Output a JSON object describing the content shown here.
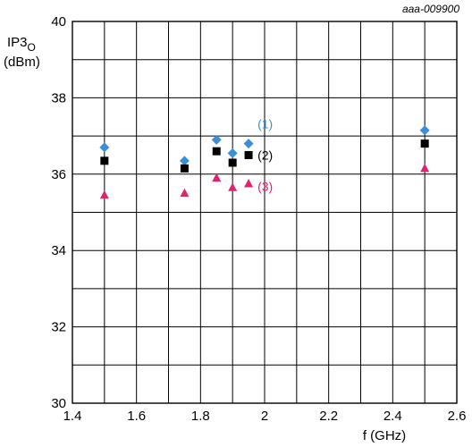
{
  "figure_id": "aaa-009900",
  "chart_data": {
    "type": "scatter",
    "y_label_main": "IP3",
    "y_label_sub": "O",
    "y_label_unit": "(dBm)",
    "xlabel": "f (GHz)",
    "xlim": [
      1.4,
      2.6
    ],
    "ylim": [
      30,
      40
    ],
    "x_ticks": [
      "1.4",
      "1.6",
      "1.8",
      "2",
      "2.2",
      "2.4",
      "2.6"
    ],
    "y_ticks": [
      "30",
      "32",
      "34",
      "36",
      "38",
      "40"
    ],
    "x_grid_step": 0.1,
    "y_grid_step": 1,
    "grid": true,
    "series": [
      {
        "label": "(1)",
        "marker": "diamond",
        "color": "#3a8fd8",
        "x": [
          1.5,
          1.75,
          1.85,
          1.9,
          1.95,
          2.5
        ],
        "y": [
          36.7,
          36.35,
          36.9,
          36.55,
          36.8,
          37.15
        ]
      },
      {
        "label": "(2)",
        "marker": "square",
        "color": "#000000",
        "x": [
          1.5,
          1.75,
          1.85,
          1.9,
          1.95,
          2.5
        ],
        "y": [
          36.35,
          36.15,
          36.6,
          36.3,
          36.5,
          36.8
        ]
      },
      {
        "label": "(3)",
        "marker": "triangle",
        "color": "#e0236e",
        "x": [
          1.5,
          1.75,
          1.85,
          1.9,
          1.95,
          2.5
        ],
        "y": [
          35.45,
          35.5,
          35.9,
          35.65,
          35.75,
          36.15
        ]
      }
    ]
  }
}
